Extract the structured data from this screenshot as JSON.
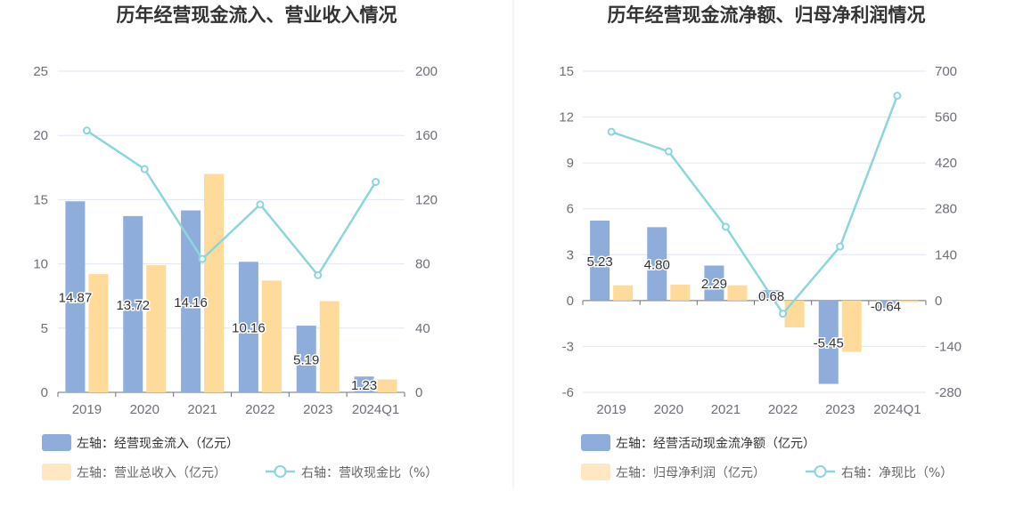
{
  "chart_data": [
    {
      "type": "bar",
      "title": "历年经营现金流入、营业收入情况",
      "categories": [
        "2019",
        "2020",
        "2021",
        "2022",
        "2023",
        "2024Q1"
      ],
      "left_axis": {
        "ylim": [
          0,
          25
        ],
        "ticks": [
          "0",
          "5",
          "10",
          "15",
          "20",
          "25"
        ]
      },
      "right_axis": {
        "ylim": [
          0,
          200
        ],
        "ticks": [
          "0",
          "40",
          "80",
          "120",
          "160",
          "200"
        ]
      },
      "series": [
        {
          "name": "左轴：经营现金流入（亿元）",
          "kind": "bar",
          "axis": "left",
          "color": "#8eaddb",
          "values": [
            14.87,
            13.72,
            14.16,
            10.16,
            5.19,
            1.23
          ],
          "labels": [
            "14.87",
            "13.72",
            "14.16",
            "10.16",
            "5.19",
            "1.23"
          ]
        },
        {
          "name": "左轴：营业总收入（亿元）",
          "kind": "bar",
          "axis": "left",
          "color": "#ffdb9b",
          "values": [
            9.2,
            9.9,
            17.0,
            8.7,
            7.1,
            1.0
          ]
        },
        {
          "name": "右轴：营收现金比（%）",
          "kind": "line",
          "axis": "right",
          "color": "#8cd6d9",
          "values": [
            163,
            139,
            83,
            117,
            73,
            131
          ]
        }
      ],
      "grid": true,
      "legend_position": "bottom"
    },
    {
      "type": "bar",
      "title": "历年经营现金流净额、归母净利润情况",
      "categories": [
        "2019",
        "2020",
        "2021",
        "2022",
        "2023",
        "2024Q1"
      ],
      "left_axis": {
        "ylim": [
          -6,
          15
        ],
        "ticks": [
          "-6",
          "-3",
          "0",
          "3",
          "6",
          "9",
          "12",
          "15"
        ]
      },
      "right_axis": {
        "ylim": [
          -280,
          700
        ],
        "ticks": [
          "-280",
          "-140",
          "0",
          "140",
          "280",
          "420",
          "560",
          "700"
        ]
      },
      "series": [
        {
          "name": "左轴：经营活动现金流净额（亿元）",
          "kind": "bar",
          "axis": "left",
          "color": "#8eaddb",
          "values": [
            5.23,
            4.8,
            2.29,
            0.68,
            -5.45,
            -0.64
          ],
          "labels": [
            "5.23",
            "4.80",
            "2.29",
            "0.68",
            "-5.45",
            "-0.64"
          ]
        },
        {
          "name": "左轴：归母净利润（亿元）",
          "kind": "bar",
          "axis": "left",
          "color": "#ffdb9b",
          "values": [
            1.0,
            1.05,
            1.0,
            -1.75,
            -3.35,
            -0.1
          ]
        },
        {
          "name": "右轴：净现比（%）",
          "kind": "line",
          "axis": "right",
          "color": "#8cd6d9",
          "values": [
            515,
            455,
            225,
            -40,
            165,
            625
          ]
        }
      ],
      "grid": true,
      "legend_position": "bottom"
    }
  ]
}
